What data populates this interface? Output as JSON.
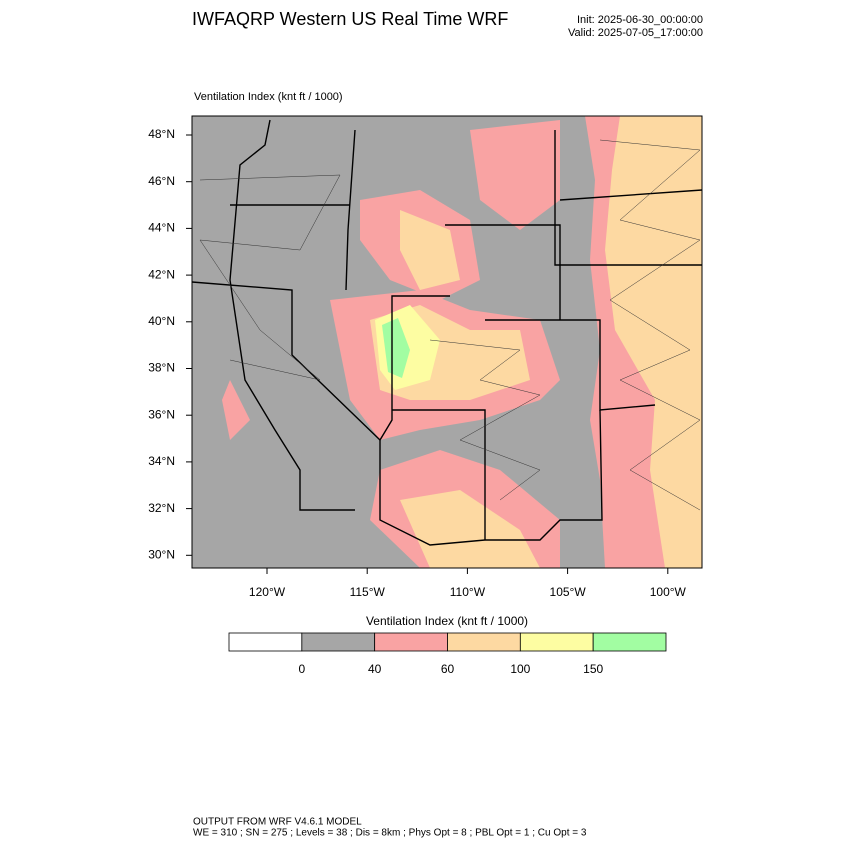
{
  "header": {
    "title": "IWFAQRP Western US Real Time WRF",
    "init": "Init: 2025-06-30_00:00:00",
    "valid": "Valid: 2025-07-05_17:00:00"
  },
  "map": {
    "subtitle": "Ventilation Index   (knt ft / 1000)",
    "lat_labels": [
      "48°N",
      "46°N",
      "44°N",
      "42°N",
      "40°N",
      "38°N",
      "36°N",
      "34°N",
      "32°N",
      "30°N"
    ],
    "lon_labels": [
      "120°W",
      "115°W",
      "110°W",
      "105°W",
      "100°W"
    ]
  },
  "colorbar": {
    "title": "Ventilation Index   (knt ft / 1000)",
    "colors": [
      "#ffffff",
      "#a6a6a6",
      "#f9a3a3",
      "#fdd9a2",
      "#fdfda2",
      "#a2fda2"
    ],
    "labels": [
      "0",
      "40",
      "60",
      "100",
      "150"
    ]
  },
  "footer": {
    "line1": "OUTPUT FROM WRF V4.6.1 MODEL",
    "line2": "WE = 310 ; SN = 275 ; Levels = 38 ; Dis = 8km ; Phys Opt = 8 ; PBL Opt = 1 ; Cu Opt = 3"
  }
}
